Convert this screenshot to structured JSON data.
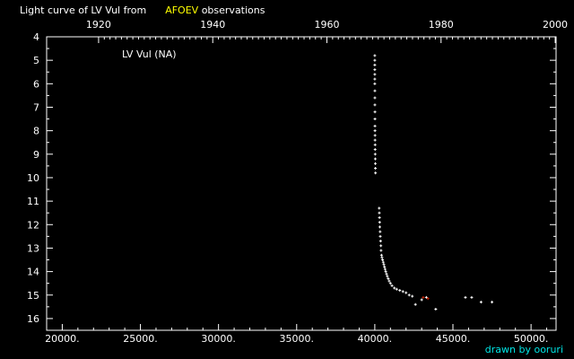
{
  "header": {
    "title_pre": "Light curve of LV Vul from",
    "title_hl": "AFOEV",
    "title_post": "observations"
  },
  "credit": "drawn by ooruri",
  "chart_data": {
    "type": "scatter",
    "annotation": "LV Vul (NA)",
    "xlim": [
      19000,
      51600
    ],
    "ylim": [
      4,
      16.5
    ],
    "y_inverted": true,
    "x_ticks": [
      20000,
      25000,
      30000,
      35000,
      40000,
      45000,
      50000
    ],
    "x_tick_labels": [
      "20000.",
      "25000.",
      "30000.",
      "35000.",
      "40000.",
      "45000.",
      "50000."
    ],
    "y_ticks": [
      4,
      5,
      6,
      7,
      8,
      9,
      10,
      11,
      12,
      13,
      14,
      15,
      16
    ],
    "top_axis_years": [
      "1920",
      "1940",
      "1960",
      "1980",
      "2000"
    ],
    "top_axis_jd": [
      22325,
      29630,
      36935,
      44240,
      51545
    ],
    "series": [
      {
        "color": "#ffffff",
        "points": [
          [
            40000,
            4.8
          ],
          [
            40000,
            5.0
          ],
          [
            40000,
            5.2
          ],
          [
            40000,
            5.4
          ],
          [
            40000,
            5.6
          ],
          [
            40000,
            5.8
          ],
          [
            40000,
            6.0
          ],
          [
            40005,
            6.3
          ],
          [
            40005,
            6.6
          ],
          [
            40005,
            6.9
          ],
          [
            40010,
            7.2
          ],
          [
            40010,
            7.5
          ],
          [
            40010,
            7.8
          ],
          [
            40012,
            8.0
          ],
          [
            40015,
            8.2
          ],
          [
            40015,
            8.4
          ],
          [
            40020,
            8.6
          ],
          [
            40020,
            8.8
          ],
          [
            40025,
            9.0
          ],
          [
            40030,
            9.2
          ],
          [
            40035,
            9.4
          ],
          [
            40040,
            9.6
          ],
          [
            40045,
            9.8
          ],
          [
            40280,
            11.3
          ],
          [
            40290,
            11.5
          ],
          [
            40300,
            11.7
          ],
          [
            40310,
            11.9
          ],
          [
            40320,
            12.1
          ],
          [
            40340,
            12.3
          ],
          [
            40350,
            12.5
          ],
          [
            40370,
            12.7
          ],
          [
            40390,
            12.9
          ],
          [
            40400,
            13.1
          ],
          [
            40430,
            13.3
          ],
          [
            40460,
            13.4
          ],
          [
            40500,
            13.5
          ],
          [
            40540,
            13.6
          ],
          [
            40580,
            13.7
          ],
          [
            40620,
            13.8
          ],
          [
            40660,
            13.9
          ],
          [
            40700,
            14.0
          ],
          [
            40750,
            14.1
          ],
          [
            40800,
            14.2
          ],
          [
            40860,
            14.3
          ],
          [
            40920,
            14.4
          ],
          [
            41000,
            14.5
          ],
          [
            41100,
            14.6
          ],
          [
            41250,
            14.7
          ],
          [
            41400,
            14.75
          ],
          [
            41600,
            14.8
          ],
          [
            41800,
            14.85
          ],
          [
            42000,
            14.9
          ],
          [
            42200,
            15.0
          ],
          [
            42400,
            15.05
          ],
          [
            42600,
            15.4
          ],
          [
            43000,
            15.2
          ],
          [
            43300,
            15.1
          ],
          [
            43900,
            15.6
          ],
          [
            45800,
            15.1
          ],
          [
            46200,
            15.1
          ],
          [
            46800,
            15.3
          ],
          [
            47500,
            15.3
          ]
        ]
      },
      {
        "color": "#cc2200",
        "points": [
          [
            43100,
            15.1
          ],
          [
            43400,
            15.15
          ]
        ]
      }
    ]
  }
}
